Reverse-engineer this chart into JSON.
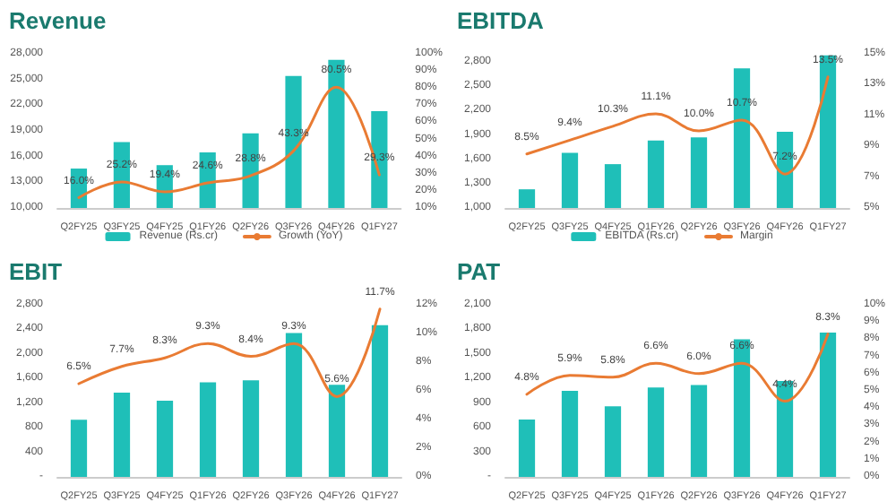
{
  "chart_data": [
    {
      "type": "bar",
      "title": "Revenue",
      "categories": [
        "Q2FY25",
        "Q3FY25",
        "Q4FY25",
        "Q1FY26",
        "Q2FY26",
        "Q3FY26",
        "Q4FY26",
        "Q1FY27"
      ],
      "series": [
        {
          "name": "Revenue (Rs.cr)",
          "color": "#1fbfb8",
          "values": [
            14600,
            17700,
            15000,
            16500,
            18700,
            25400,
            27300,
            21300
          ]
        },
        {
          "name": "Growth (YoY)",
          "type": "line",
          "axis": "y2",
          "color": "#e97b33",
          "values": [
            16.0,
            25.2,
            19.4,
            24.6,
            28.8,
            43.3,
            80.5,
            29.3
          ],
          "value_labels": [
            "16.0%",
            "25.2%",
            "19.4%",
            "24.6%",
            "28.8%",
            "43.3%",
            "80.5%",
            "29.3%"
          ]
        }
      ],
      "ylim": [
        10000,
        28000
      ],
      "yticks": [
        {
          "value": 10000,
          "label": "10,000"
        },
        {
          "value": 13000,
          "label": "13,000"
        },
        {
          "value": 16000,
          "label": "16,000"
        },
        {
          "value": 19000,
          "label": "19,000"
        },
        {
          "value": 22000,
          "label": "22,000"
        },
        {
          "value": 25000,
          "label": "25,000"
        },
        {
          "value": 28000,
          "label": "28,000"
        }
      ],
      "y2lim": [
        10,
        100
      ],
      "y2ticks": [
        {
          "value": 10,
          "label": "10%"
        },
        {
          "value": 20,
          "label": "20%"
        },
        {
          "value": 30,
          "label": "30%"
        },
        {
          "value": 40,
          "label": "40%"
        },
        {
          "value": 50,
          "label": "50%"
        },
        {
          "value": 60,
          "label": "60%"
        },
        {
          "value": 70,
          "label": "70%"
        },
        {
          "value": 80,
          "label": "80%"
        },
        {
          "value": 90,
          "label": "90%"
        },
        {
          "value": 100,
          "label": "100%"
        }
      ],
      "legend": "bottom",
      "marker": "none",
      "line_style": "solid"
    },
    {
      "type": "bar",
      "title": "EBITDA",
      "categories": [
        "Q2FY25",
        "Q3FY25",
        "Q4FY25",
        "Q1FY26",
        "Q2FY26",
        "Q3FY26",
        "Q4FY26",
        "Q1FY27"
      ],
      "series": [
        {
          "name": "EBITDA (Rs.cr)",
          "color": "#1fbfb8",
          "values": [
            1230,
            1680,
            1540,
            1830,
            1870,
            2720,
            1940,
            2880
          ]
        },
        {
          "name": "Margin",
          "type": "line",
          "axis": "y2",
          "color": "#e97b33",
          "values": [
            8.5,
            9.4,
            10.3,
            11.1,
            10.0,
            10.7,
            7.2,
            13.5
          ],
          "value_labels": [
            "8.5%",
            "9.4%",
            "10.3%",
            "11.1%",
            "10.0%",
            "10.7%",
            "7.2%",
            "13.5%"
          ]
        }
      ],
      "ylim": [
        1000,
        2900
      ],
      "yticks": [
        {
          "value": 1000,
          "label": "1,000"
        },
        {
          "value": 1300,
          "label": "1,300"
        },
        {
          "value": 1600,
          "label": "1,600"
        },
        {
          "value": 1900,
          "label": "1,900"
        },
        {
          "value": 2200,
          "label": "2,200"
        },
        {
          "value": 2500,
          "label": "2,500"
        },
        {
          "value": 2800,
          "label": "2,800"
        }
      ],
      "y2lim": [
        5,
        15
      ],
      "y2ticks": [
        {
          "value": 5,
          "label": "5%"
        },
        {
          "value": 7,
          "label": "7%"
        },
        {
          "value": 9,
          "label": "9%"
        },
        {
          "value": 11,
          "label": "11%"
        },
        {
          "value": 13,
          "label": "13%"
        },
        {
          "value": 15,
          "label": "15%"
        }
      ],
      "legend": "bottom",
      "marker": "none",
      "line_style": "solid"
    },
    {
      "type": "bar",
      "title": "EBIT",
      "categories": [
        "Q2FY25",
        "Q3FY25",
        "Q4FY25",
        "Q1FY26",
        "Q2FY26",
        "Q3FY26",
        "Q4FY26",
        "Q1FY27"
      ],
      "series": [
        {
          "color": "#1fbfb8",
          "values": [
            930,
            1370,
            1240,
            1540,
            1570,
            2340,
            1500,
            2470
          ]
        },
        {
          "type": "line",
          "axis": "y2",
          "color": "#e97b33",
          "values": [
            6.5,
            7.7,
            8.3,
            9.3,
            8.4,
            9.3,
            5.6,
            11.7
          ],
          "value_labels": [
            "6.5%",
            "7.7%",
            "8.3%",
            "9.3%",
            "8.4%",
            "9.3%",
            "5.6%",
            "11.7%"
          ]
        }
      ],
      "ylim": [
        0,
        2800
      ],
      "yticks": [
        {
          "value": 0,
          "label": "-"
        },
        {
          "value": 400,
          "label": "400"
        },
        {
          "value": 800,
          "label": "800"
        },
        {
          "value": 1200,
          "label": "1,200"
        },
        {
          "value": 1600,
          "label": "1,600"
        },
        {
          "value": 2000,
          "label": "2,000"
        },
        {
          "value": 2400,
          "label": "2,400"
        },
        {
          "value": 2800,
          "label": "2,800"
        }
      ],
      "y2lim": [
        0,
        12
      ],
      "y2ticks": [
        {
          "value": 0,
          "label": "0%"
        },
        {
          "value": 2,
          "label": "2%"
        },
        {
          "value": 4,
          "label": "4%"
        },
        {
          "value": 6,
          "label": "6%"
        },
        {
          "value": 8,
          "label": "8%"
        },
        {
          "value": 10,
          "label": "10%"
        },
        {
          "value": 12,
          "label": "12%"
        }
      ],
      "marker": "none",
      "line_style": "solid"
    },
    {
      "type": "bar",
      "title": "PAT",
      "categories": [
        "Q2FY25",
        "Q3FY25",
        "Q4FY25",
        "Q1FY26",
        "Q2FY26",
        "Q3FY26",
        "Q4FY26",
        "Q1FY27"
      ],
      "series": [
        {
          "color": "#1fbfb8",
          "values": [
            700,
            1050,
            860,
            1090,
            1120,
            1680,
            1170,
            1760
          ]
        },
        {
          "type": "line",
          "axis": "y2",
          "color": "#e97b33",
          "values": [
            4.8,
            5.9,
            5.8,
            6.6,
            6.0,
            6.6,
            4.4,
            8.3
          ],
          "value_labels": [
            "4.8%",
            "5.9%",
            "5.8%",
            "6.6%",
            "6.0%",
            "6.6%",
            "4.4%",
            "8.3%"
          ]
        }
      ],
      "ylim": [
        0,
        2100
      ],
      "yticks": [
        {
          "value": 0,
          "label": "-"
        },
        {
          "value": 300,
          "label": "300"
        },
        {
          "value": 600,
          "label": "600"
        },
        {
          "value": 900,
          "label": "900"
        },
        {
          "value": 1200,
          "label": "1,200"
        },
        {
          "value": 1500,
          "label": "1,500"
        },
        {
          "value": 1800,
          "label": "1,800"
        },
        {
          "value": 2100,
          "label": "2,100"
        }
      ],
      "y2lim": [
        0,
        10
      ],
      "y2ticks": [
        {
          "value": 0,
          "label": "0%"
        },
        {
          "value": 1,
          "label": "1%"
        },
        {
          "value": 2,
          "label": "2%"
        },
        {
          "value": 3,
          "label": "3%"
        },
        {
          "value": 4,
          "label": "4%"
        },
        {
          "value": 5,
          "label": "5%"
        },
        {
          "value": 6,
          "label": "6%"
        },
        {
          "value": 7,
          "label": "7%"
        },
        {
          "value": 8,
          "label": "8%"
        },
        {
          "value": 9,
          "label": "9%"
        },
        {
          "value": 10,
          "label": "10%"
        }
      ],
      "marker": "none",
      "line_style": "solid"
    }
  ]
}
